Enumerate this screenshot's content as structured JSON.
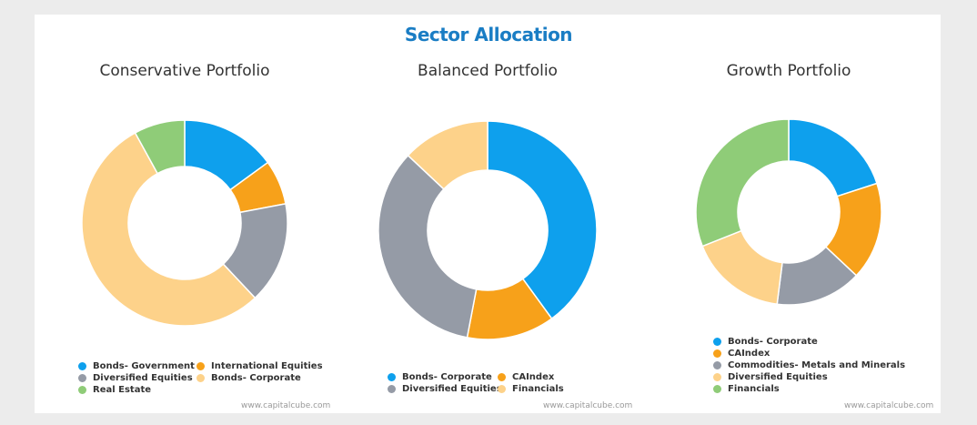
{
  "chart_data": {
    "title": "Sector Allocation",
    "type": "pie",
    "charts": [
      {
        "title": "Conservative Portfolio",
        "labels": [
          "Bonds- Government",
          "International Equities",
          "Diversified Equities",
          "Bonds- Corporate",
          "Real Estate"
        ],
        "values": [
          15,
          7,
          16,
          54,
          8
        ],
        "colors": [
          "#0ea0ed",
          "#f7a11a",
          "#959ba6",
          "#fdd28a",
          "#8fcc78"
        ]
      },
      {
        "title": "Balanced Portfolio",
        "labels": [
          "Bonds- Corporate",
          "CAIndex",
          "Diversified Equities",
          "Financials"
        ],
        "values": [
          40,
          13,
          34,
          13
        ],
        "colors": [
          "#0ea0ed",
          "#f7a11a",
          "#959ba6",
          "#fdd28a"
        ]
      },
      {
        "title": "Growth Portfolio",
        "labels": [
          "Bonds- Corporate",
          "CAIndex",
          "Commodities- Metals and Minerals",
          "Diversified Equities",
          "Financials"
        ],
        "values": [
          20,
          17,
          15,
          17,
          31
        ],
        "colors": [
          "#0ea0ed",
          "#f7a11a",
          "#959ba6",
          "#fdd28a",
          "#8fcc78"
        ]
      }
    ]
  },
  "watermark": "www.capitalcube.com"
}
